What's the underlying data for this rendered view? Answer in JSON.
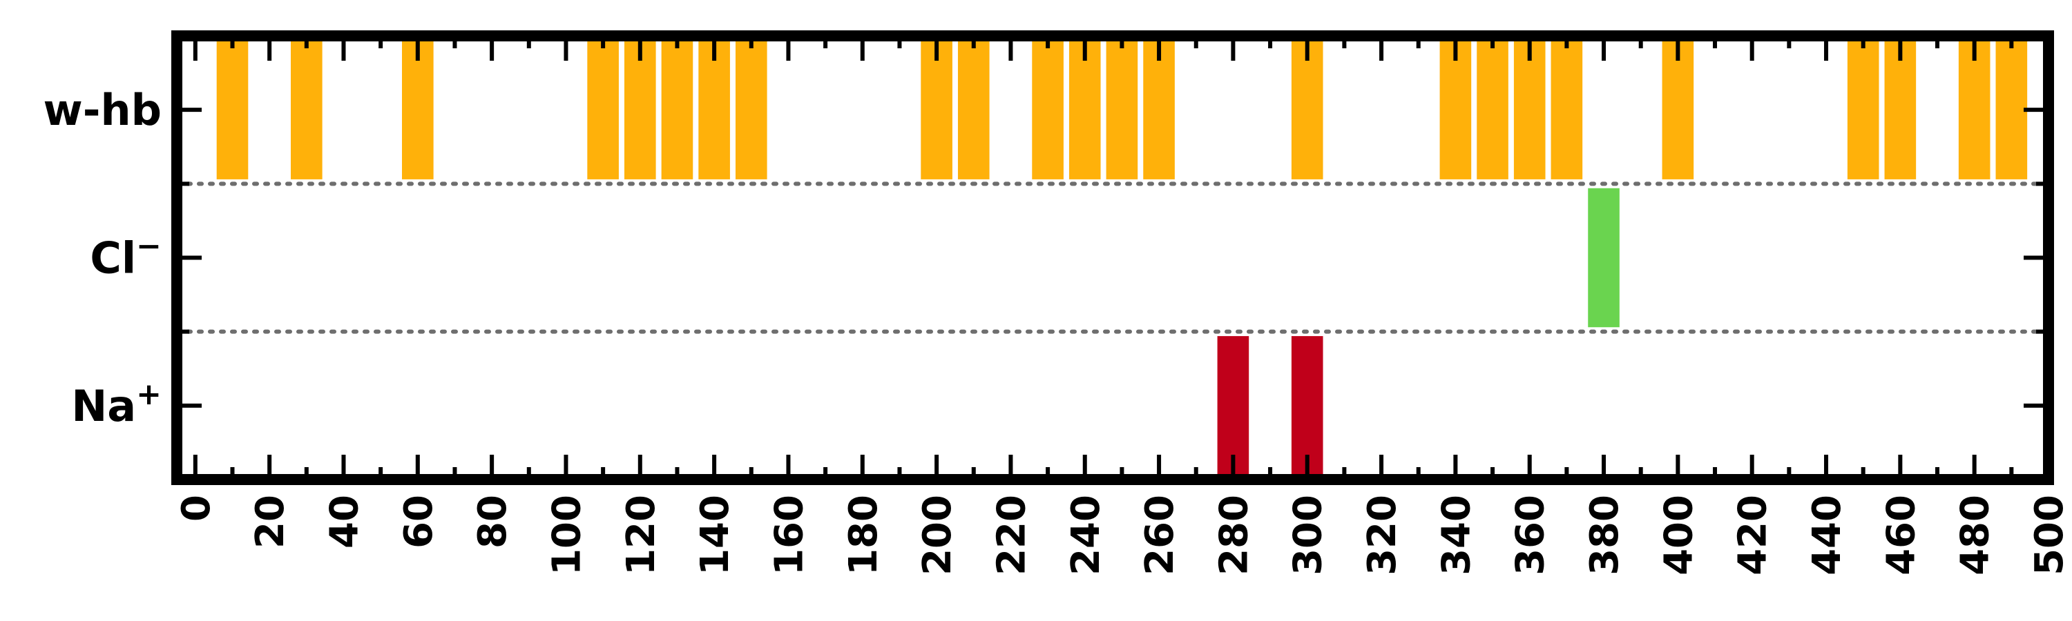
{
  "chart_data": {
    "type": "bar",
    "orientation": "horizontal-events",
    "xlim": [
      -5,
      500
    ],
    "ylim": [
      -0.5,
      2.5
    ],
    "x_ticks": [
      0,
      20,
      40,
      60,
      80,
      100,
      120,
      140,
      160,
      180,
      200,
      220,
      240,
      260,
      280,
      300,
      320,
      340,
      360,
      380,
      400,
      420,
      440,
      460,
      480,
      500
    ],
    "x_minor_ticks": [
      10,
      30,
      50,
      70,
      90,
      110,
      130,
      150,
      170,
      190,
      210,
      230,
      250,
      270,
      290,
      310,
      330,
      350,
      370,
      390,
      410,
      430,
      450,
      470,
      490
    ],
    "categories": [
      {
        "base": "Na",
        "sup": "+"
      },
      {
        "base": "Cl",
        "sup": "−"
      },
      {
        "base": "w-hb",
        "sup": ""
      }
    ],
    "event_width": 8.5,
    "series": [
      {
        "category_index": 0,
        "color": "#c0001a",
        "x": [
          280,
          300
        ]
      },
      {
        "category_index": 1,
        "color": "#6ad44f",
        "x": [
          380
        ]
      },
      {
        "category_index": 2,
        "color": "#ffb10a",
        "x": [
          10,
          30,
          60,
          110,
          120,
          130,
          140,
          150,
          200,
          210,
          230,
          240,
          250,
          260,
          300,
          340,
          350,
          360,
          370,
          400,
          450,
          460,
          480,
          490
        ]
      }
    ],
    "separator_lines": [
      0.5,
      1.5,
      2.5
    ],
    "separator_style": "dotted",
    "separator_color": "#6e6e6e",
    "grid": false,
    "legend": "none",
    "title": "",
    "xlabel": "",
    "ylabel": ""
  }
}
